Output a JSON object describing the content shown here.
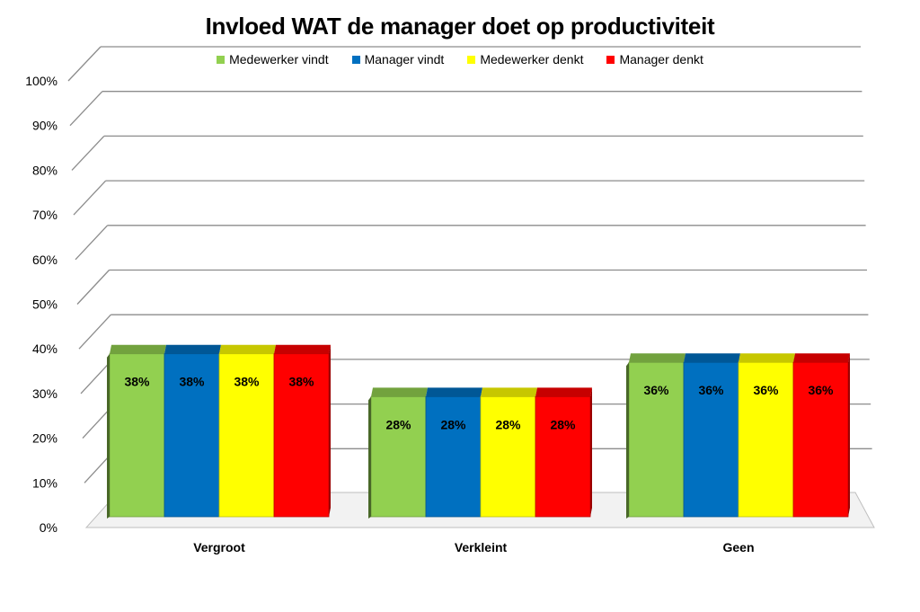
{
  "chart_data": {
    "type": "bar",
    "title": "Invloed WAT de manager doet op productiviteit",
    "categories": [
      "Vergroot",
      "Verkleint",
      "Geen"
    ],
    "series": [
      {
        "name": "Medewerker vindt",
        "values": [
          38,
          28,
          36
        ],
        "labels": [
          "38%",
          "28%",
          "36%"
        ],
        "color": "#92D050"
      },
      {
        "name": "Manager vindt",
        "values": [
          38,
          28,
          36
        ],
        "labels": [
          "38%",
          "28%",
          "36%"
        ],
        "color": "#0070C0"
      },
      {
        "name": "Medewerker denkt",
        "values": [
          38,
          28,
          36
        ],
        "labels": [
          "38%",
          "28%",
          "36%"
        ],
        "color": "#FFFF00"
      },
      {
        "name": "Manager denkt",
        "values": [
          38,
          28,
          36
        ],
        "labels": [
          "38%",
          "28%",
          "36%"
        ],
        "color": "#FF0000"
      }
    ],
    "y_ticks": [
      "0%",
      "10%",
      "20%",
      "30%",
      "40%",
      "50%",
      "60%",
      "70%",
      "80%",
      "90%",
      "100%"
    ],
    "ylim": [
      0,
      100
    ],
    "grid": true,
    "legend_position": "top"
  }
}
